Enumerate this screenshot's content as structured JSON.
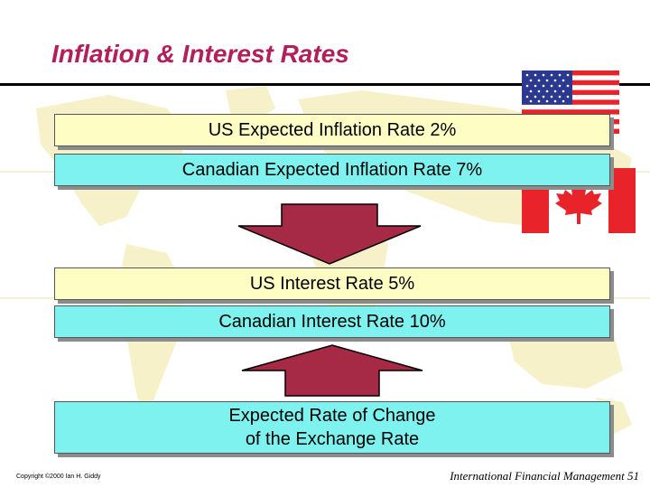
{
  "slide": {
    "title": "Inflation & Interest Rates"
  },
  "boxes": {
    "us_inflation": "US Expected Inflation Rate 2%",
    "ca_inflation": "Canadian Expected Inflation Rate 7%",
    "us_interest": "US Interest Rate 5%",
    "ca_interest": "Canadian Interest Rate 10%",
    "exchange_line1": "Expected Rate of Change",
    "exchange_line2": "of the Exchange Rate"
  },
  "footer": {
    "copyright": "Copyright ©2000 Ian H. Giddy",
    "course_page": "International Financial Management 51"
  },
  "colors": {
    "title": "#b11f5c",
    "box_yellow": "#fefec4",
    "box_cyan": "#7ef2ef",
    "arrow_fill": "#a62a45",
    "map": "#f6f1c8",
    "flag_red": "#e8232a",
    "flag_blue": "#2b3990"
  },
  "icons": {
    "us_flag": "us-flag-icon",
    "canada_flag": "canada-flag-icon",
    "down_arrow": "down-arrow-icon",
    "up_arrow": "up-arrow-icon"
  }
}
